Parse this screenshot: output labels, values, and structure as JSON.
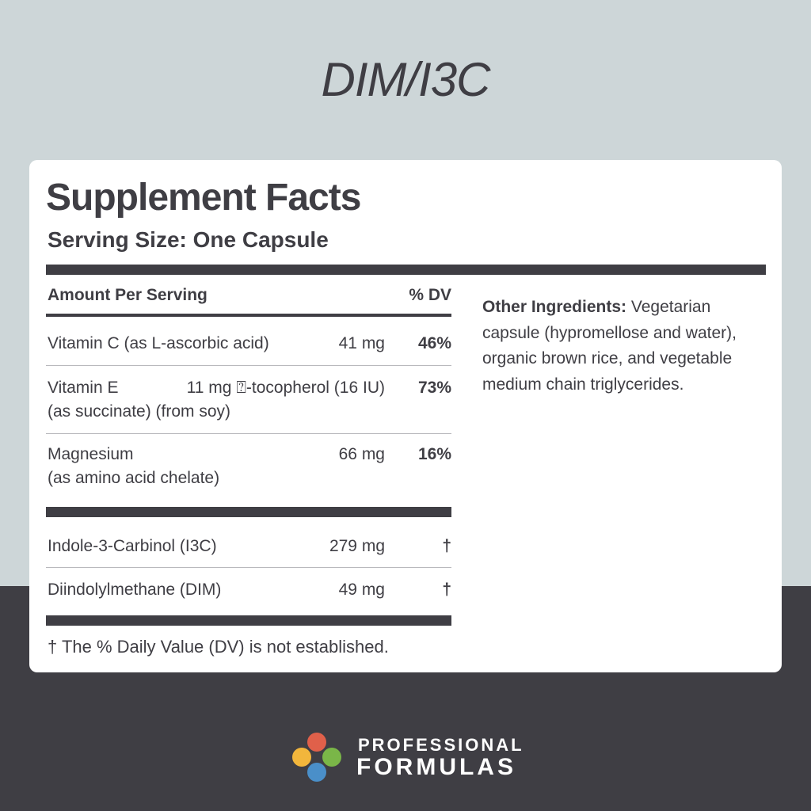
{
  "header": {
    "title": "DIM/I3C"
  },
  "facts": {
    "title": "Supplement Facts",
    "serving_size": "Serving Size: One Capsule",
    "table": {
      "header": [
        "Amount Per Serving",
        "% DV"
      ],
      "rows": [
        {
          "name": "Vitamin C (as L-ascorbic acid)",
          "amount": "41 mg",
          "dv": "46%"
        },
        {
          "name": "Vitamin E",
          "amount": "11 mg ⍰-tocopherol (16 IU)",
          "detail": "(as succinate) (from soy)",
          "dv": "73%"
        },
        {
          "name": "Magnesium",
          "amount": "66 mg",
          "detail": "(as amino acid chelate)",
          "dv": "16%"
        },
        {
          "name": "Indole-3-Carbinol (I3C)",
          "amount": "279 mg",
          "dv": "†"
        },
        {
          "name": "Diindolylmethane (DIM)",
          "amount": "49 mg",
          "dv": "†"
        }
      ]
    },
    "footnote": "† The % Daily Value (DV) is not established.",
    "other_ingredients": {
      "label": "Other Ingredients:",
      "text": "Vegetarian capsule (hypromellose and water), organic brown rice, and vegetable medium chain triglycerides."
    }
  },
  "logo": {
    "line1": "PROFESSIONAL",
    "line2": "FORMULAS"
  }
}
